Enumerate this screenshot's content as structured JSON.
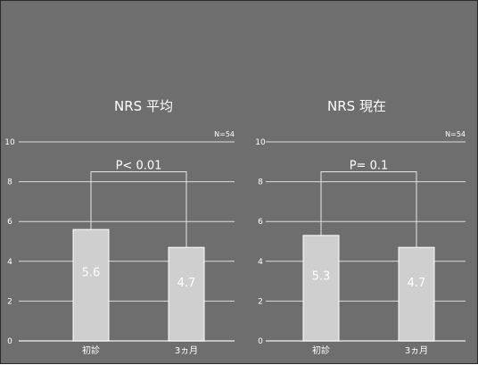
{
  "colors": {
    "background": "#6e6e6e",
    "bar": "#cfcfcf",
    "bar_stroke": "#ffffff",
    "grid": "#dcdcdc",
    "text": "#ffffff",
    "bracket": "#e6e6e6"
  },
  "chart_data": [
    {
      "type": "bar",
      "title": "NRS 平均",
      "n_label": "N=54",
      "categories": [
        "初診",
        "3ヵ月"
      ],
      "values": [
        5.6,
        4.7
      ],
      "value_labels": [
        "5.6",
        "4.7"
      ],
      "ylim": [
        0,
        10
      ],
      "yticks": [
        "0",
        "2",
        "4",
        "6",
        "8",
        "10"
      ],
      "grid": true,
      "annotation": "P< 0.01"
    },
    {
      "type": "bar",
      "title": "NRS 現在",
      "n_label": "N=54",
      "categories": [
        "初診",
        "3ヵ月"
      ],
      "values": [
        5.3,
        4.7
      ],
      "value_labels": [
        "5.3",
        "4.7"
      ],
      "ylim": [
        0,
        10
      ],
      "yticks": [
        "0",
        "2",
        "4",
        "6",
        "8",
        "10"
      ],
      "grid": true,
      "annotation": "P= 0.1"
    }
  ]
}
